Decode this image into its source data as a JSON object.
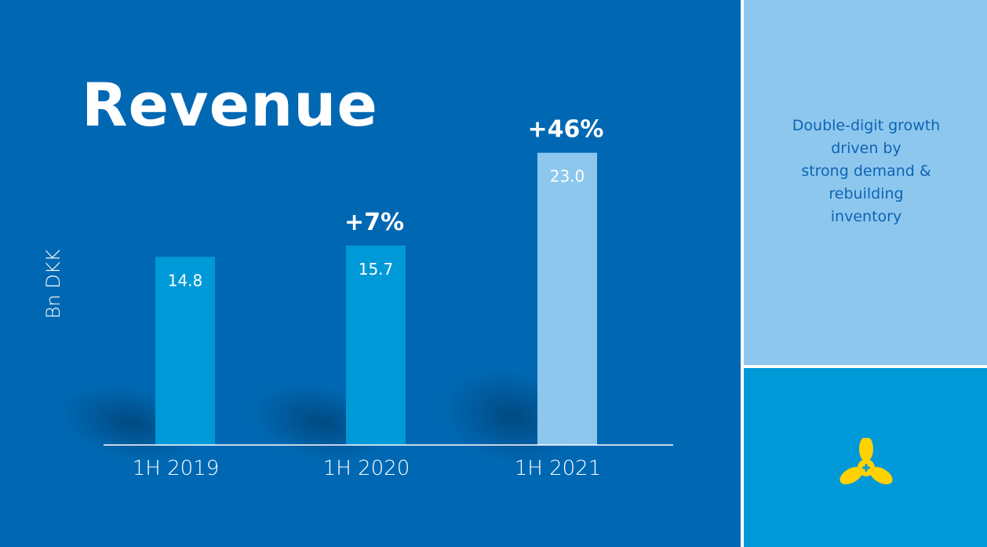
{
  "title": "Revenue",
  "side_text": "Double-digit growth\ndriven by\nstrong demand  &\nrebuilding\ninventory",
  "logo_icon": "propeller-icon",
  "colors": {
    "background": "#0068b3",
    "bar_past": "#0099d8",
    "bar_current": "#8dc7ee",
    "side_top": "#8dc7ee",
    "side_bottom": "#0099d8",
    "logo": "#ffd200"
  },
  "chart_data": {
    "type": "bar",
    "categories": [
      "1H 2019",
      "1H 2020",
      "1H 2021"
    ],
    "values": [
      14.8,
      15.7,
      23.0
    ],
    "data_labels": [
      "14.8",
      "15.7",
      "23.0"
    ],
    "growth_labels": [
      "",
      "+7%",
      "+46%"
    ],
    "ylabel": "Bn DKK",
    "ylim": [
      0,
      26.5
    ],
    "grid": false
  }
}
